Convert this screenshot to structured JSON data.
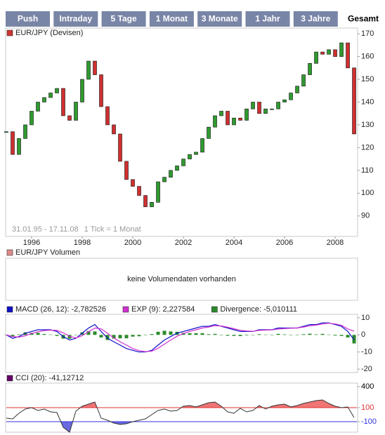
{
  "tabs": [
    "Push",
    "Intraday",
    "5 Tage",
    "1 Monat",
    "3 Monate",
    "1 Jahr",
    "3 Jahre",
    "Gesamt"
  ],
  "active_tab": 7,
  "chart_data": [
    {
      "type": "candlestick",
      "legend": {
        "label": "EUR/JPY (Devisen)",
        "color": "#cc3333"
      },
      "annotations": [
        "31.01.95 - 17.11.08",
        "1 Tick = 1 Monat"
      ],
      "x": [
        1995,
        1995.25,
        1995.5,
        1995.75,
        1996,
        1996.25,
        1996.5,
        1996.75,
        1997,
        1997.25,
        1997.5,
        1997.75,
        1998,
        1998.25,
        1998.5,
        1998.75,
        1999,
        1999.25,
        1999.5,
        1999.75,
        2000,
        2000.25,
        2000.5,
        2000.75,
        2001,
        2001.25,
        2001.5,
        2001.75,
        2002,
        2002.25,
        2002.5,
        2002.75,
        2003,
        2003.25,
        2003.5,
        2003.75,
        2004,
        2004.25,
        2004.5,
        2004.75,
        2005,
        2005.25,
        2005.5,
        2005.75,
        2006,
        2006.25,
        2006.5,
        2006.75,
        2007,
        2007.25,
        2007.5,
        2007.75,
        2008,
        2008.25,
        2008.5,
        2008.75
      ],
      "close": [
        127,
        117,
        124,
        130,
        136,
        140,
        142,
        144,
        146,
        134,
        132,
        140,
        150,
        158,
        152,
        138,
        130,
        126,
        114,
        106,
        103,
        99,
        94,
        96,
        105,
        107,
        110,
        112,
        115,
        117,
        118,
        124,
        129,
        134,
        136,
        130,
        133,
        132,
        137,
        140,
        135,
        137,
        137,
        140,
        141,
        144,
        147,
        152,
        157,
        162,
        161,
        163,
        160,
        166,
        155,
        126
      ],
      "up_color": "#2f9a2f",
      "down_color": "#d03030",
      "xlim": [
        1995,
        2008.86
      ],
      "xticks": [
        1996,
        1998,
        2000,
        2002,
        2004,
        2006,
        2008
      ],
      "ylim": [
        81,
        172.5
      ],
      "yticks": [
        170,
        160,
        150,
        140,
        130,
        120,
        110,
        100,
        90
      ]
    },
    {
      "type": "empty",
      "legend": {
        "label": "EUR/JPY Volumen",
        "color": "#e08a8a"
      },
      "message": "keine Volumendaten vorhanden"
    },
    {
      "type": "line",
      "x": [
        1995,
        1995.25,
        1995.5,
        1995.75,
        1996,
        1996.25,
        1996.5,
        1996.75,
        1997,
        1997.25,
        1997.5,
        1997.75,
        1998,
        1998.25,
        1998.5,
        1998.75,
        1999,
        1999.25,
        1999.5,
        1999.75,
        2000,
        2000.25,
        2000.5,
        2000.75,
        2001,
        2001.25,
        2001.5,
        2001.75,
        2002,
        2002.25,
        2002.5,
        2002.75,
        2003,
        2003.25,
        2003.5,
        2003.75,
        2004,
        2004.25,
        2004.5,
        2004.75,
        2005,
        2005.25,
        2005.5,
        2005.75,
        2006,
        2006.25,
        2006.5,
        2006.75,
        2007,
        2007.25,
        2007.5,
        2007.75,
        2008,
        2008.25,
        2008.5,
        2008.75
      ],
      "series": [
        {
          "name": "MACD (26, 12): -2,782526",
          "color": "#1010c8",
          "kind": "line",
          "values": [
            0,
            -2,
            -1,
            1,
            2,
            3,
            3,
            3,
            2,
            -1,
            -3,
            -2,
            1,
            4,
            6,
            2,
            -2,
            -4,
            -6,
            -8,
            -9,
            -10,
            -10,
            -9,
            -6,
            -3,
            -1,
            1,
            2,
            3,
            4,
            5,
            5,
            6,
            5,
            4,
            3,
            2,
            2,
            2,
            3,
            3,
            3,
            4,
            4,
            4,
            4,
            5,
            6,
            6,
            7,
            7,
            6,
            5,
            2,
            -2.782526
          ]
        },
        {
          "name": "EXP (9): 2,227584",
          "color": "#d030d0",
          "kind": "line",
          "values": [
            0,
            -1,
            -1.3,
            -0.5,
            0.8,
            1.8,
            2.5,
            2.8,
            2.6,
            1.2,
            -0.8,
            -1.8,
            -0.5,
            1.8,
            4,
            3.5,
            1,
            -1.8,
            -4,
            -6,
            -8,
            -9.2,
            -9.8,
            -9.5,
            -7.8,
            -5.4,
            -3,
            -0.8,
            0.8,
            2,
            3,
            4,
            4.6,
            5.4,
            5.2,
            4.5,
            3.6,
            2.7,
            2.3,
            2.1,
            2.6,
            2.8,
            2.9,
            3.4,
            3.7,
            3.9,
            4,
            4.6,
            5.3,
            5.7,
            6.4,
            6.8,
            6.4,
            5.6,
            3.5,
            2.227584
          ]
        },
        {
          "name": "Divergence: -5,010111",
          "color": "#2a8a2a",
          "kind": "bar",
          "values": [
            0,
            -1,
            0.3,
            1.5,
            1.2,
            1.2,
            0.5,
            0.2,
            -0.6,
            -2.2,
            -2.2,
            -0.2,
            1.5,
            2.2,
            2,
            -1.5,
            -3,
            -2.2,
            -2,
            -2,
            -1,
            -0.8,
            -0.2,
            0.5,
            1.8,
            2.4,
            2,
            1.8,
            1.2,
            1,
            1,
            1,
            0.4,
            0.6,
            -0.2,
            -0.5,
            -0.6,
            -0.7,
            -0.3,
            -0.1,
            0.4,
            0.2,
            0.1,
            0.6,
            0.3,
            0.1,
            0,
            0.4,
            0.7,
            0.3,
            0.6,
            0.2,
            -0.4,
            -0.6,
            -1.5,
            -5.010111
          ]
        }
      ],
      "xlim": [
        1995,
        2008.86
      ],
      "ylim": [
        -22,
        12
      ],
      "yticks": [
        10,
        0,
        -10,
        -20
      ]
    },
    {
      "type": "area",
      "x": [
        1995,
        1995.25,
        1995.5,
        1995.75,
        1996,
        1996.25,
        1996.5,
        1996.75,
        1997,
        1997.25,
        1997.5,
        1997.75,
        1998,
        1998.25,
        1998.5,
        1998.75,
        1999,
        1999.25,
        1999.5,
        1999.75,
        2000,
        2000.25,
        2000.5,
        2000.75,
        2001,
        2001.25,
        2001.5,
        2001.75,
        2002,
        2002.25,
        2002.5,
        2002.75,
        2003,
        2003.25,
        2003.5,
        2003.75,
        2004,
        2004.25,
        2004.5,
        2004.75,
        2005,
        2005.25,
        2005.5,
        2005.75,
        2006,
        2006.25,
        2006.5,
        2006.75,
        2007,
        2007.25,
        2007.5,
        2007.75,
        2008,
        2008.25,
        2008.5,
        2008.75
      ],
      "series": [
        {
          "name": "CCI (20): -41,12712",
          "color": "#660066",
          "line_color": "#333333",
          "values": [
            -50,
            -60,
            20,
            80,
            100,
            60,
            80,
            40,
            30,
            -180,
            -250,
            50,
            120,
            150,
            180,
            -50,
            -80,
            -120,
            -140,
            -130,
            -100,
            -80,
            -60,
            0,
            60,
            80,
            50,
            60,
            120,
            130,
            110,
            140,
            170,
            180,
            120,
            40,
            20,
            90,
            40,
            60,
            130,
            80,
            120,
            140,
            150,
            110,
            130,
            160,
            180,
            200,
            210,
            160,
            120,
            100,
            110,
            -41.12712
          ]
        }
      ],
      "reference_lines": [
        {
          "value": 100,
          "color": "#e03030",
          "fill": "#f07575"
        },
        {
          "value": -100,
          "color": "#3030e0",
          "fill": "#6a6ae0"
        }
      ],
      "xlim": [
        1995,
        2008.86
      ],
      "ylim": [
        -250,
        450
      ],
      "yticks": [
        400,
        100,
        -100
      ],
      "ytick_colors": [
        "#000000",
        "#e03030",
        "#3030e0"
      ]
    }
  ]
}
